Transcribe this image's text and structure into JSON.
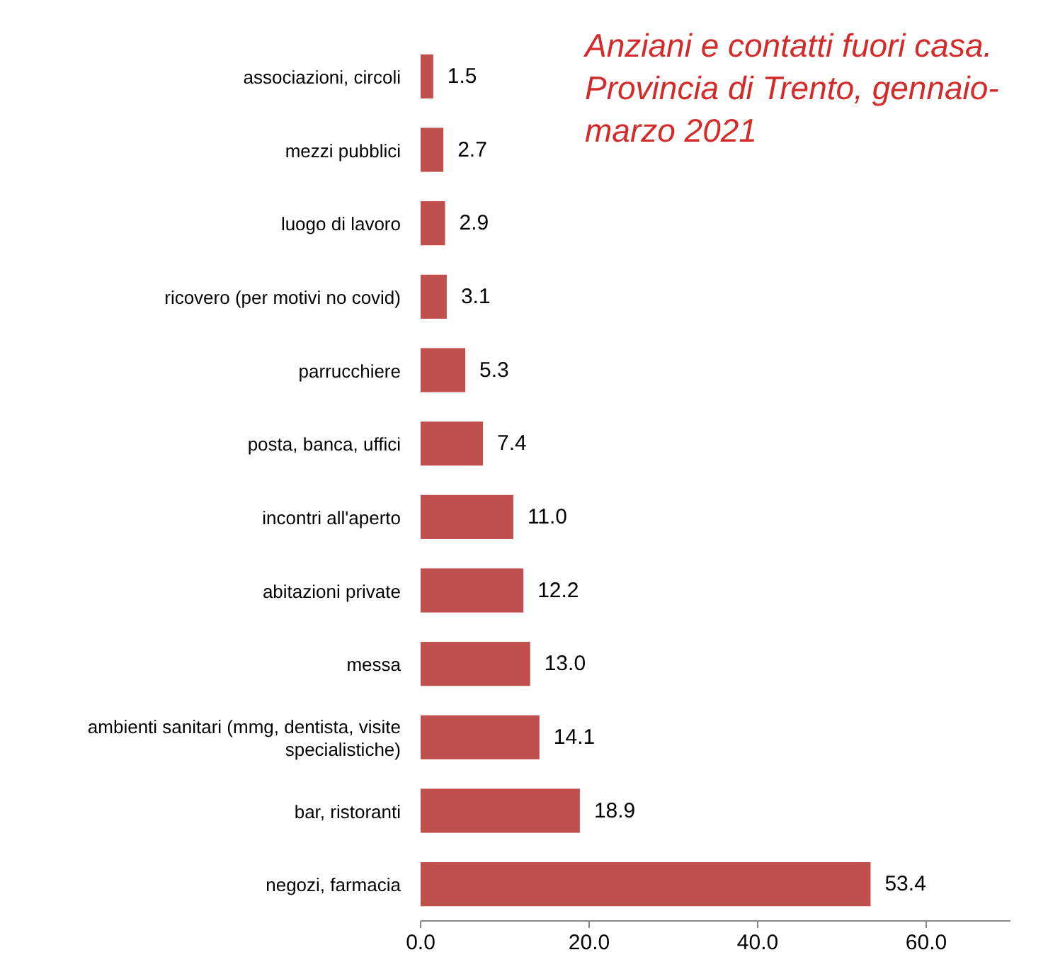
{
  "chart_data": {
    "type": "bar",
    "orientation": "horizontal",
    "title": "Anziani e contatti fuori casa. Provincia di Trento, gennaio-marzo 2021",
    "categories": [
      "associazioni, circoli",
      "mezzi pubblici",
      "luogo di lavoro",
      "ricovero (per motivi no covid)",
      "parrucchiere",
      "posta, banca, uffici",
      "incontri all'aperto",
      "abitazioni private",
      "messa",
      "ambienti sanitari (mmg, dentista, visite specialistiche)",
      "bar, ristoranti",
      "negozi, farmacia"
    ],
    "values": [
      1.5,
      2.7,
      2.9,
      3.1,
      5.3,
      7.4,
      11.0,
      12.2,
      13.0,
      14.1,
      18.9,
      53.4
    ],
    "value_labels": [
      "1.5",
      "2.7",
      "2.9",
      "3.1",
      "5.3",
      "7.4",
      "11.0",
      "12.2",
      "13.0",
      "14.1",
      "18.9",
      "53.4"
    ],
    "color": "#c0504d",
    "xlim": [
      0,
      70
    ],
    "xticks": [
      {
        "value": 0,
        "label": "0.0"
      },
      {
        "value": 20,
        "label": "20.0"
      },
      {
        "value": 40,
        "label": "40.0"
      },
      {
        "value": 60,
        "label": "60.0"
      }
    ],
    "grid": false
  }
}
